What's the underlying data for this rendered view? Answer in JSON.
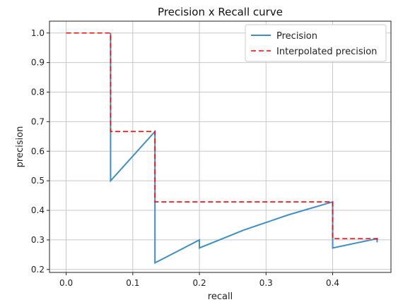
{
  "chart_data": {
    "type": "line",
    "title": "Precision x Recall curve",
    "xlabel": "recall",
    "ylabel": "precision",
    "xlim": [
      -0.025,
      0.4875
    ],
    "ylim": [
      0.19,
      1.04
    ],
    "xticks": [
      "0.0",
      "0.1",
      "0.2",
      "0.3",
      "0.4"
    ],
    "yticks": [
      "0.2",
      "0.3",
      "0.4",
      "0.5",
      "0.6",
      "0.7",
      "0.8",
      "0.9",
      "1.0"
    ],
    "grid": true,
    "legend_position": "top-right",
    "series": [
      {
        "name": "Precision",
        "color": "#3f8fc5",
        "style": "solid",
        "points": [
          [
            0.0667,
            1.0
          ],
          [
            0.0667,
            0.5
          ],
          [
            0.1333,
            0.6667
          ],
          [
            0.1333,
            0.2222
          ],
          [
            0.2,
            0.3
          ],
          [
            0.2,
            0.2727
          ],
          [
            0.2667,
            0.3333
          ],
          [
            0.3333,
            0.3846
          ],
          [
            0.4,
            0.4286
          ],
          [
            0.4,
            0.2727
          ],
          [
            0.4667,
            0.3043
          ],
          [
            0.4667,
            0.2917
          ]
        ]
      },
      {
        "name": "Interpolated precision",
        "color": "#ff0000",
        "style": "dashed",
        "points": [
          [
            0.0,
            1.0
          ],
          [
            0.0667,
            1.0
          ],
          [
            0.0667,
            0.6667
          ],
          [
            0.1333,
            0.6667
          ],
          [
            0.1333,
            0.4286
          ],
          [
            0.4,
            0.4286
          ],
          [
            0.4,
            0.3043
          ],
          [
            0.4667,
            0.3043
          ],
          [
            0.4667,
            0.2917
          ]
        ]
      }
    ]
  }
}
